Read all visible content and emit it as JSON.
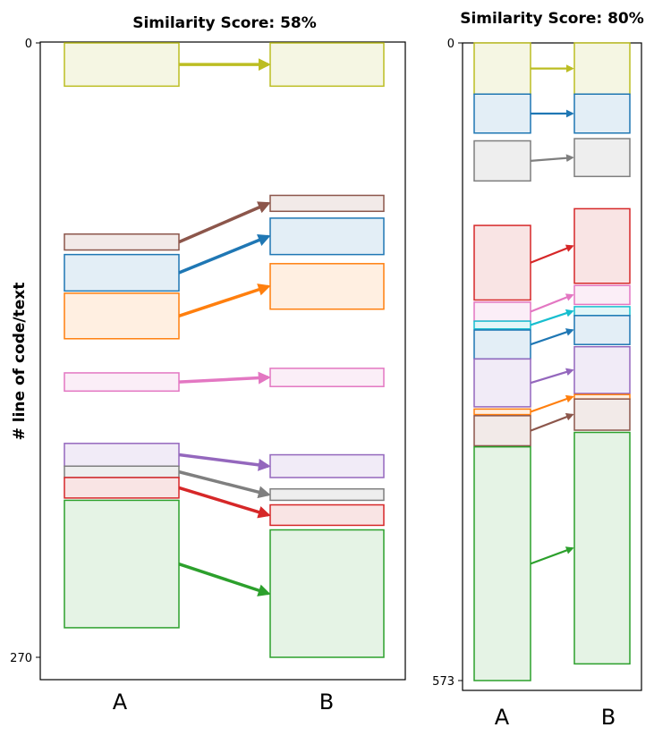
{
  "chart_data": [
    {
      "type": "diagram-flow",
      "title": "Similarity Score: 58%",
      "ylabel": "# line of code/text",
      "xlabels": [
        "A",
        "B"
      ],
      "yticks": [
        0,
        270
      ],
      "ylim": [
        0,
        270
      ],
      "blocks": [
        {
          "color": "#bcbd22",
          "fill": "#f5f6e3",
          "a": [
            0,
            19
          ],
          "b": [
            0,
            19
          ]
        },
        {
          "color": "#8c564b",
          "fill": "#f2eae8",
          "a": [
            84,
            91
          ],
          "b": [
            67,
            74
          ]
        },
        {
          "color": "#1f77b4",
          "fill": "#e3eef6",
          "a": [
            93,
            109
          ],
          "b": [
            77,
            93
          ]
        },
        {
          "color": "#ff7f0e",
          "fill": "#ffefe1",
          "a": [
            110,
            130
          ],
          "b": [
            97,
            117
          ]
        },
        {
          "color": "#e377c2",
          "fill": "#fbeef7",
          "a": [
            145,
            153
          ],
          "b": [
            143,
            151
          ]
        },
        {
          "color": "#9467bd",
          "fill": "#f1ebf7",
          "a": [
            176,
            186
          ],
          "b": [
            181,
            191
          ]
        },
        {
          "color": "#7f7f7f",
          "fill": "#eeeeee",
          "a": [
            186,
            191
          ],
          "b": [
            196,
            201
          ]
        },
        {
          "color": "#d62728",
          "fill": "#f9e4e4",
          "a": [
            191,
            200
          ],
          "b": [
            203,
            212
          ]
        },
        {
          "color": "#2ca02c",
          "fill": "#e5f3e5",
          "a": [
            201,
            257
          ],
          "b": [
            214,
            270
          ]
        }
      ]
    },
    {
      "type": "diagram-flow",
      "title": "Similarity Score: 80%",
      "ylabel": "",
      "xlabels": [
        "A",
        "B"
      ],
      "yticks": [
        0,
        573
      ],
      "ylim": [
        0,
        573
      ],
      "blocks": [
        {
          "color": "#bcbd22",
          "fill": "#f5f6e3",
          "a": [
            0,
            46
          ],
          "b": [
            0,
            46
          ]
        },
        {
          "color": "#1f77b4",
          "fill": "#e3eef6",
          "a": [
            46,
            81
          ],
          "b": [
            46,
            81
          ]
        },
        {
          "color": "#7f7f7f",
          "fill": "#eeeeee",
          "a": [
            88,
            124
          ],
          "b": [
            86,
            120
          ]
        },
        {
          "color": "#d62728",
          "fill": "#f9e4e4",
          "a": [
            164,
            231
          ],
          "b": [
            149,
            216
          ]
        },
        {
          "color": "#e377c2",
          "fill": "#fbeef7",
          "a": [
            233,
            250
          ],
          "b": [
            218,
            235
          ]
        },
        {
          "color": "#17becf",
          "fill": "#e2f6f8",
          "a": [
            250,
            257
          ],
          "b": [
            237,
            245
          ]
        },
        {
          "color": "#1f77b4",
          "fill": "#e3eef6",
          "a": [
            258,
            284
          ],
          "b": [
            245,
            271
          ]
        },
        {
          "color": "#9467bd",
          "fill": "#f1ebf7",
          "a": [
            284,
            327
          ],
          "b": [
            273,
            315
          ]
        },
        {
          "color": "#ff7f0e",
          "fill": "#ffefe1",
          "a": [
            329,
            334
          ],
          "b": [
            316,
            320
          ]
        },
        {
          "color": "#8c564b",
          "fill": "#f2eae8",
          "a": [
            335,
            362
          ],
          "b": [
            320,
            348
          ]
        },
        {
          "color": "#2ca02c",
          "fill": "#e5f3e5",
          "a": [
            363,
            573
          ],
          "b": [
            350,
            558
          ]
        }
      ]
    }
  ]
}
